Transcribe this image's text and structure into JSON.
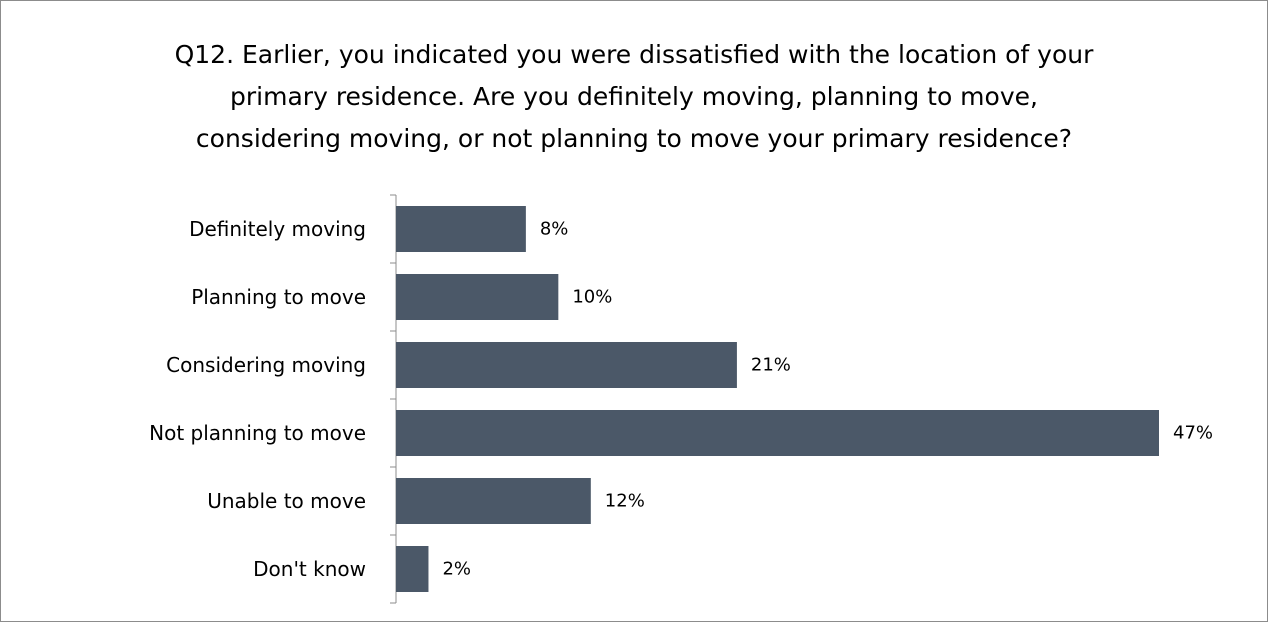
{
  "chart_data": {
    "type": "bar",
    "orientation": "horizontal",
    "title_lines": [
      "Q12. Earlier, you indicated you were dissatisfied with the location of your",
      "primary residence. Are you definitely moving, planning to move,",
      "considering moving, or not planning to move your primary residence?"
    ],
    "categories": [
      "Definitely moving",
      "Planning to move",
      "Considering moving",
      "Not planning to move",
      "Unable to move",
      "Don't know"
    ],
    "values": [
      8,
      10,
      21,
      47,
      12,
      2
    ],
    "data_labels": [
      "8%",
      "10%",
      "21%",
      "47%",
      "12%",
      "2%"
    ],
    "xlim": [
      0,
      47
    ],
    "unit": "%",
    "bar_color": "#4b5868",
    "grid": false,
    "legend": "none"
  }
}
